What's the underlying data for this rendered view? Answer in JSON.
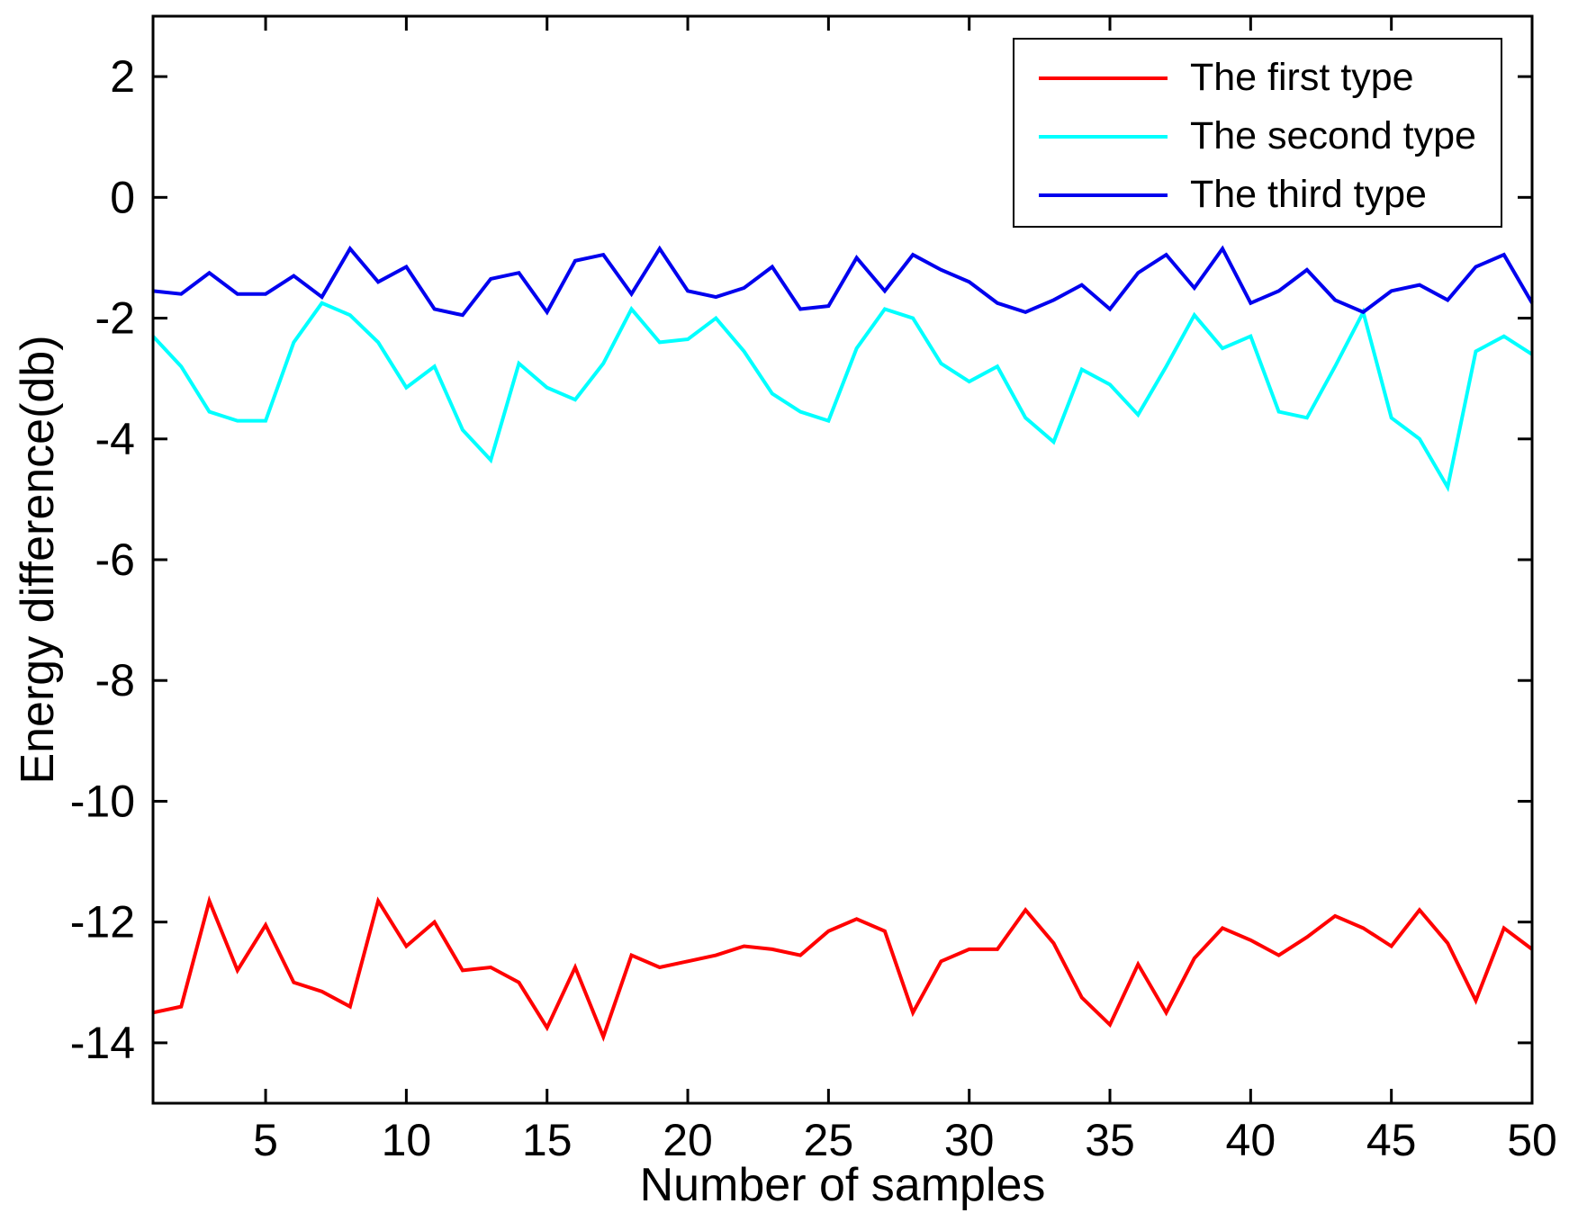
{
  "figure": {
    "background": "#ffffff",
    "axis_color": "#000000"
  },
  "chart_data": {
    "type": "line",
    "title": "",
    "xlabel": "Number of samples",
    "ylabel": "Energy difference(db)",
    "xlim": [
      1,
      50
    ],
    "ylim": [
      -15,
      3
    ],
    "xticks": [
      5,
      10,
      15,
      20,
      25,
      30,
      35,
      40,
      45,
      50
    ],
    "yticks": [
      2,
      0,
      -2,
      -4,
      -6,
      -8,
      -10,
      -12,
      -14
    ],
    "grid": false,
    "legend_position": "top-right",
    "x": [
      1,
      2,
      3,
      4,
      5,
      6,
      7,
      8,
      9,
      10,
      11,
      12,
      13,
      14,
      15,
      16,
      17,
      18,
      19,
      20,
      21,
      22,
      23,
      24,
      25,
      26,
      27,
      28,
      29,
      30,
      31,
      32,
      33,
      34,
      35,
      36,
      37,
      38,
      39,
      40,
      41,
      42,
      43,
      44,
      45,
      46,
      47,
      48,
      49,
      50
    ],
    "series": [
      {
        "name": "The first type",
        "color": "#ff0000",
        "values": [
          -13.5,
          -13.4,
          -11.65,
          -12.8,
          -12.05,
          -13.0,
          -13.15,
          -13.4,
          -11.65,
          -12.4,
          -12.0,
          -12.8,
          -12.75,
          -13.0,
          -13.75,
          -12.75,
          -13.9,
          -12.55,
          -12.75,
          -12.65,
          -12.55,
          -12.4,
          -12.45,
          -12.55,
          -12.15,
          -11.95,
          -12.15,
          -13.5,
          -12.65,
          -12.45,
          -12.45,
          -11.8,
          -12.35,
          -13.25,
          -13.7,
          -12.7,
          -13.5,
          -12.6,
          -12.1,
          -12.3,
          -12.55,
          -12.25,
          -11.9,
          -12.1,
          -12.4,
          -11.8,
          -12.35,
          -13.3,
          -12.1,
          -12.45
        ]
      },
      {
        "name": "The second type",
        "color": "#00ffff",
        "values": [
          -2.3,
          -2.8,
          -3.55,
          -3.7,
          -3.7,
          -2.4,
          -1.75,
          -1.95,
          -2.4,
          -3.15,
          -2.8,
          -3.85,
          -4.35,
          -2.75,
          -3.15,
          -3.35,
          -2.75,
          -1.85,
          -2.4,
          -2.35,
          -2.0,
          -2.55,
          -3.25,
          -3.55,
          -3.7,
          -2.5,
          -1.85,
          -2.0,
          -2.75,
          -3.05,
          -2.8,
          -3.65,
          -4.05,
          -2.85,
          -3.1,
          -3.6,
          -2.8,
          -1.95,
          -2.5,
          -2.3,
          -3.55,
          -3.65,
          -2.8,
          -1.9,
          -3.65,
          -4.0,
          -4.8,
          -2.55,
          -2.3,
          -2.6
        ]
      },
      {
        "name": "The third type",
        "color": "#0000ee",
        "values": [
          -1.55,
          -1.6,
          -1.25,
          -1.6,
          -1.6,
          -1.3,
          -1.65,
          -0.85,
          -1.4,
          -1.15,
          -1.85,
          -1.95,
          -1.35,
          -1.25,
          -1.9,
          -1.05,
          -0.95,
          -1.6,
          -0.85,
          -1.55,
          -1.65,
          -1.5,
          -1.15,
          -1.85,
          -1.8,
          -1.0,
          -1.55,
          -0.95,
          -1.2,
          -1.4,
          -1.75,
          -1.9,
          -1.7,
          -1.45,
          -1.85,
          -1.25,
          -0.95,
          -1.5,
          -0.85,
          -1.75,
          -1.55,
          -1.2,
          -1.7,
          -1.9,
          -1.55,
          -1.45,
          -1.7,
          -1.15,
          -0.95,
          -1.75
        ]
      }
    ]
  }
}
